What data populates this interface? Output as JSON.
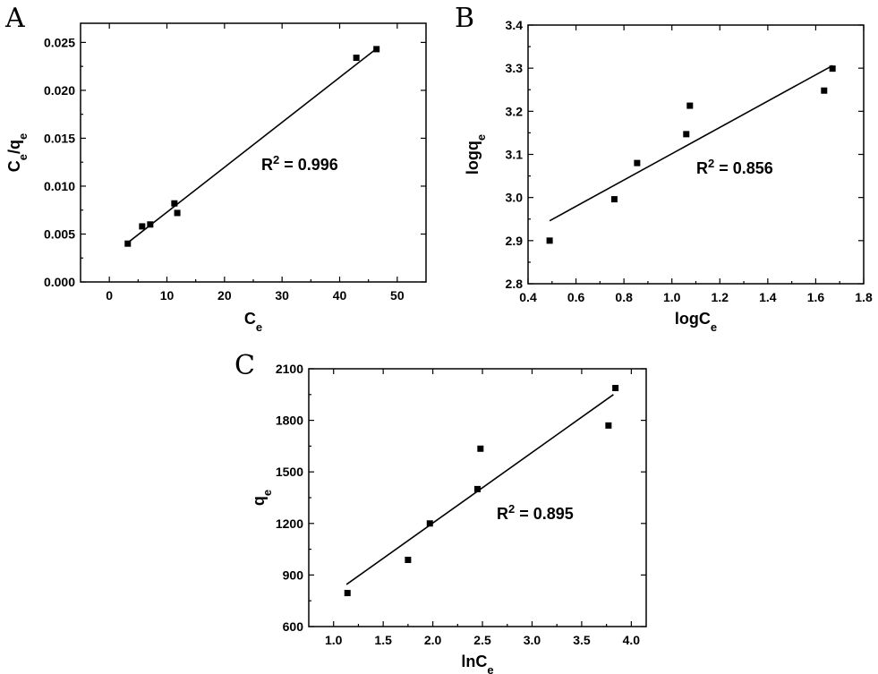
{
  "chart_data": [
    {
      "type": "scatter",
      "panel_label": "A",
      "xlabel": {
        "base": "C",
        "sub": "e"
      },
      "ylabel": {
        "base": "C",
        "sub": "e",
        "mid": "/q",
        "sub2": "e"
      },
      "xlim": [
        -5,
        55
      ],
      "ylim": [
        0,
        0.027
      ],
      "xticks": [
        "0",
        "10",
        "20",
        "30",
        "40",
        "50"
      ],
      "yticks": [
        "0.000",
        "0.005",
        "0.010",
        "0.015",
        "0.020",
        "0.025"
      ],
      "points": [
        [
          3.2,
          0.004
        ],
        [
          5.7,
          0.0058
        ],
        [
          7.1,
          0.006
        ],
        [
          11.3,
          0.0082
        ],
        [
          11.8,
          0.0072
        ],
        [
          42.9,
          0.0234
        ],
        [
          46.4,
          0.0243
        ]
      ],
      "fit_line": [
        [
          3.0,
          0.004
        ],
        [
          46.5,
          0.0244
        ]
      ],
      "annotation": {
        "text": "R",
        "sup": "2",
        "value": " = 0.996"
      }
    },
    {
      "type": "scatter",
      "panel_label": "B",
      "xlabel": {
        "base": "logC",
        "sub": "e"
      },
      "ylabel": {
        "base": "logq",
        "sub": "e"
      },
      "xlim": [
        0.4,
        1.8
      ],
      "ylim": [
        2.8,
        3.4
      ],
      "xticks": [
        "0.4",
        "0.6",
        "0.8",
        "1.0",
        "1.2",
        "1.4",
        "1.6",
        "1.8"
      ],
      "yticks": [
        "2.8",
        "2.9",
        "3.0",
        "3.1",
        "3.2",
        "3.3",
        "3.4"
      ],
      "points": [
        [
          0.49,
          2.9
        ],
        [
          0.76,
          2.996
        ],
        [
          0.855,
          3.08
        ],
        [
          1.06,
          3.147
        ],
        [
          1.075,
          3.213
        ],
        [
          1.635,
          3.248
        ],
        [
          1.67,
          3.299
        ]
      ],
      "fit_line": [
        [
          0.49,
          2.946
        ],
        [
          1.67,
          3.306
        ]
      ],
      "annotation": {
        "text": "R",
        "sup": "2",
        "value": " = 0.856"
      }
    },
    {
      "type": "scatter",
      "panel_label": "C",
      "xlabel": {
        "base": "lnC",
        "sub": "e"
      },
      "ylabel": {
        "base": "q",
        "sub": "e"
      },
      "xlim": [
        0.75,
        4.15
      ],
      "ylim": [
        600,
        2100
      ],
      "xticks": [
        "1.0",
        "1.5",
        "2.0",
        "2.5",
        "3.0",
        "3.5",
        "4.0"
      ],
      "yticks": [
        "600",
        "900",
        "1200",
        "1500",
        "1800",
        "2100"
      ],
      "points": [
        [
          1.14,
          795
        ],
        [
          1.75,
          988
        ],
        [
          1.97,
          1200
        ],
        [
          2.45,
          1400
        ],
        [
          2.48,
          1635
        ],
        [
          3.77,
          1770
        ],
        [
          3.84,
          1988
        ]
      ],
      "fit_line": [
        [
          1.13,
          845
        ],
        [
          3.82,
          1950
        ]
      ],
      "annotation": {
        "text": "R",
        "sup": "2",
        "value": " = 0.895"
      }
    }
  ]
}
